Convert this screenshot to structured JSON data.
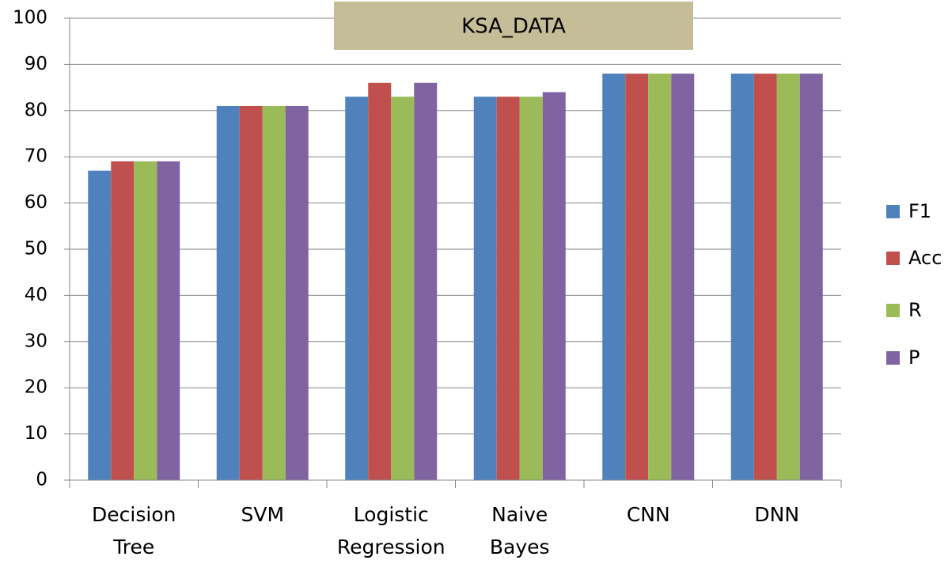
{
  "chart_data": {
    "type": "bar",
    "title": "KSA_DATA",
    "categories": [
      "Decision Tree",
      "SVM",
      "Logistic Regression",
      "Naive Bayes",
      "CNN",
      "DNN"
    ],
    "series": [
      {
        "name": "F1",
        "color": "#4f81bd",
        "values": [
          67,
          81,
          83,
          83,
          88,
          88
        ]
      },
      {
        "name": "Acc",
        "color": "#c0504d",
        "values": [
          69,
          81,
          86,
          83,
          88,
          88
        ]
      },
      {
        "name": "R",
        "color": "#9bbb59",
        "values": [
          69,
          81,
          83,
          83,
          88,
          88
        ]
      },
      {
        "name": "P",
        "color": "#8064a2",
        "values": [
          69,
          81,
          86,
          84,
          88,
          88
        ]
      }
    ],
    "ylim": [
      0,
      100
    ],
    "yticks": [
      0,
      10,
      20,
      30,
      40,
      50,
      60,
      70,
      80,
      90,
      100
    ],
    "grid": true,
    "legend": "right"
  }
}
